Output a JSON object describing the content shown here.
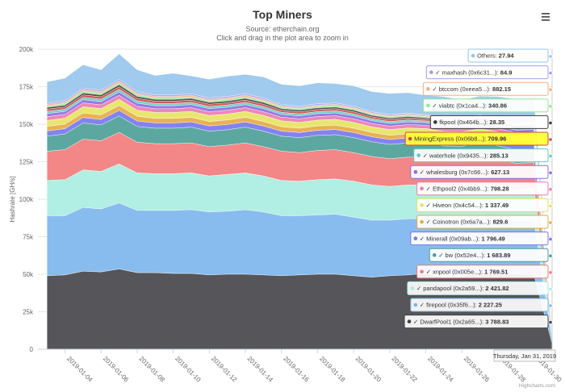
{
  "chart_data": {
    "type": "area",
    "stacked": true,
    "title": "Top Miners",
    "subtitle_line1": "Source: etherchain.org",
    "subtitle_line2": "Click and drag in the plot area to zoom in",
    "ylabel": "Hashrate [GH/s]",
    "ylim": [
      0,
      200000
    ],
    "yticks": [
      0,
      25000,
      50000,
      75000,
      100000,
      125000,
      150000,
      175000,
      200000
    ],
    "ytick_labels": [
      "0",
      "25k",
      "50k",
      "75k",
      "100k",
      "125k",
      "150k",
      "175k",
      "200k"
    ],
    "xticks": [
      "2019-01-04",
      "2019-01-06",
      "2019-01-08",
      "2019-01-10",
      "2019-01-12",
      "2019-01-14",
      "2019-01-16",
      "2019-01-18",
      "2019-01-20",
      "2019-01-22",
      "2019-01-24",
      "2019-01-26",
      "2019-01-28",
      "2019-01-30"
    ],
    "x": [
      "2019-01-03",
      "2019-01-04",
      "2019-01-05",
      "2019-01-06",
      "2019-01-07",
      "2019-01-08",
      "2019-01-09",
      "2019-01-10",
      "2019-01-11",
      "2019-01-12",
      "2019-01-13",
      "2019-01-14",
      "2019-01-15",
      "2019-01-16",
      "2019-01-17",
      "2019-01-18",
      "2019-01-19",
      "2019-01-20",
      "2019-01-21",
      "2019-01-22",
      "2019-01-23",
      "2019-01-24",
      "2019-01-25",
      "2019-01-26",
      "2019-01-27",
      "2019-01-28",
      "2019-01-29",
      "2019-01-30",
      "2019-01-31"
    ],
    "grid": true,
    "series": [
      {
        "name": "DwarfPool1 (0x2a65...)",
        "color": "#434348",
        "values": [
          49000,
          49500,
          52000,
          51500,
          53500,
          51000,
          51000,
          50500,
          50500,
          49500,
          50000,
          50000,
          49500,
          49000,
          49500,
          50000,
          50000,
          49000,
          48000,
          49000,
          49500,
          50500,
          48000,
          48500,
          51500,
          50500,
          50000,
          49500,
          3789
        ]
      },
      {
        "name": "firepool (0x35f6...)",
        "color": "#7cb5ec",
        "values": [
          40000,
          39500,
          42500,
          42000,
          44000,
          41500,
          41500,
          42000,
          42500,
          42000,
          42000,
          43000,
          42000,
          40000,
          39500,
          39500,
          40000,
          39000,
          38000,
          37000,
          37500,
          36500,
          37000,
          37500,
          36500,
          36500,
          35500,
          36000,
          2227
        ]
      },
      {
        "name": "pandapool (0x2a59...)",
        "color": "#a8ece0",
        "values": [
          23500,
          24000,
          25000,
          25000,
          26000,
          25000,
          24500,
          24500,
          24500,
          24000,
          24500,
          24500,
          24000,
          23500,
          23000,
          23500,
          23500,
          24000,
          23500,
          22500,
          22500,
          22500,
          22500,
          22000,
          22000,
          21500,
          21000,
          21500,
          2422
        ]
      },
      {
        "name": "xnpool (0x005e...)",
        "color": "#f27979",
        "values": [
          19500,
          20000,
          20500,
          20500,
          21000,
          20500,
          20000,
          20000,
          20000,
          19500,
          19500,
          20000,
          19500,
          19500,
          19000,
          19500,
          19500,
          19000,
          19000,
          18500,
          18500,
          18500,
          18500,
          18000,
          18000,
          18000,
          17500,
          17500,
          1770
        ]
      },
      {
        "name": "bw (0x52e4...)",
        "color": "#4a9e96",
        "values": [
          10000,
          10500,
          10800,
          10500,
          11000,
          10500,
          10300,
          10300,
          10500,
          10300,
          10300,
          10500,
          10300,
          10000,
          10000,
          10000,
          10000,
          10000,
          9800,
          9500,
          9500,
          9500,
          9500,
          9300,
          9300,
          9100,
          9000,
          9000,
          1684
        ]
      },
      {
        "name": "Minerall (0x09ab...)",
        "color": "#7575ec",
        "values": [
          3500,
          3500,
          3600,
          3600,
          3700,
          3600,
          3500,
          3500,
          3500,
          3500,
          3500,
          3500,
          3500,
          3400,
          3400,
          3400,
          3400,
          3400,
          3300,
          3300,
          3300,
          3200,
          3200,
          3200,
          3200,
          3100,
          3100,
          3100,
          1796
        ]
      },
      {
        "name": "Coinotron (0x6a7a...)",
        "color": "#e8a840",
        "values": [
          3000,
          3000,
          3100,
          3100,
          3200,
          3100,
          3000,
          3000,
          3000,
          3000,
          3000,
          3000,
          3000,
          2900,
          2900,
          2900,
          2900,
          2900,
          2800,
          2800,
          2800,
          2700,
          2700,
          2700,
          2700,
          2600,
          2600,
          2600,
          830
        ]
      },
      {
        "name": "Hiveon (0x4c54...)",
        "color": "#e4e460",
        "values": [
          4000,
          4000,
          4100,
          4100,
          4200,
          4100,
          4000,
          4000,
          4000,
          4000,
          4000,
          4000,
          4000,
          3900,
          3900,
          3900,
          3900,
          3900,
          3800,
          3800,
          3800,
          3700,
          3700,
          3700,
          3700,
          3600,
          3600,
          3600,
          1337
        ]
      },
      {
        "name": "Ethpool2 (0x4bb9...)",
        "color": "#ec7ab0",
        "values": [
          2500,
          2500,
          2600,
          2600,
          2700,
          2600,
          2500,
          2500,
          2500,
          2500,
          2500,
          2500,
          2500,
          2400,
          2400,
          2400,
          2400,
          2400,
          2300,
          2300,
          2300,
          2200,
          2200,
          2200,
          2200,
          2100,
          2100,
          2100,
          798
        ]
      },
      {
        "name": "whalesburg (0x7c66...)",
        "color": "#8b6ce0",
        "values": [
          2000,
          2000,
          2100,
          2100,
          2200,
          2100,
          2000,
          2000,
          2000,
          2000,
          2000,
          2000,
          2000,
          1900,
          1900,
          1900,
          1900,
          1900,
          1800,
          1800,
          1800,
          1700,
          1700,
          1700,
          1700,
          1600,
          1600,
          1600,
          627
        ]
      },
      {
        "name": "waterhole (0x9435...)",
        "color": "#68c8c0",
        "values": [
          1500,
          1500,
          1600,
          1600,
          1700,
          1600,
          1500,
          1500,
          1500,
          1500,
          1500,
          1500,
          1500,
          1400,
          1400,
          1400,
          1400,
          1400,
          1300,
          1300,
          1300,
          1200,
          1200,
          1200,
          1200,
          1100,
          1100,
          1100,
          285
        ]
      },
      {
        "name": "MiningExpress (0x06b8...)",
        "color": "#c84848",
        "values": [
          1500,
          1500,
          1600,
          1600,
          1700,
          1600,
          1500,
          1500,
          1500,
          1500,
          1500,
          1500,
          1500,
          1400,
          1400,
          1400,
          1400,
          1400,
          1300,
          1300,
          1300,
          1200,
          1200,
          1200,
          1200,
          1100,
          1100,
          1100,
          710
        ]
      },
      {
        "name": "fkpool (0x464b...)",
        "color": "#3a3a3a",
        "values": [
          1200,
          1200,
          1300,
          1300,
          1400,
          1300,
          1200,
          1200,
          1200,
          1200,
          1200,
          1200,
          1200,
          1100,
          1100,
          1100,
          1100,
          1100,
          1000,
          1000,
          1000,
          900,
          900,
          900,
          900,
          800,
          800,
          800,
          28
        ]
      },
      {
        "name": "viabtc (0x1ca4...)",
        "color": "#90e890",
        "values": [
          1000,
          1000,
          1100,
          1100,
          1200,
          1100,
          1000,
          1000,
          1000,
          1000,
          1000,
          1000,
          1000,
          900,
          900,
          900,
          900,
          900,
          800,
          800,
          800,
          700,
          700,
          700,
          700,
          600,
          600,
          600,
          341
        ]
      },
      {
        "name": "btccom (0xeea5...)",
        "color": "#f0b080",
        "values": [
          1000,
          1000,
          1100,
          1100,
          1200,
          1100,
          1000,
          1000,
          1000,
          1000,
          1000,
          1000,
          1000,
          900,
          900,
          900,
          900,
          900,
          800,
          800,
          800,
          700,
          700,
          700,
          700,
          600,
          600,
          600,
          882
        ]
      },
      {
        "name": "maxhash (0x6c31...)",
        "color": "#a0a0f0",
        "values": [
          1000,
          1000,
          1100,
          1100,
          1200,
          1100,
          1000,
          1000,
          1000,
          1000,
          1000,
          1000,
          1000,
          900,
          900,
          900,
          900,
          900,
          800,
          800,
          800,
          700,
          700,
          700,
          700,
          600,
          600,
          600,
          85
        ]
      },
      {
        "name": "Others",
        "color": "#96c4ec",
        "values": [
          14000,
          15000,
          15500,
          13500,
          17000,
          14500,
          13000,
          14500,
          12000,
          12500,
          13500,
          13000,
          14000,
          13500,
          13500,
          14000,
          13000,
          13500,
          13500,
          14000,
          13500,
          13000,
          14000,
          12000,
          12500,
          15000,
          16000,
          15500,
          28
        ]
      }
    ]
  },
  "tooltip": {
    "header": "Thursday, Jan 31, 2019",
    "rows": [
      {
        "label": "Others",
        "check": false,
        "value": "27.94"
      },
      {
        "label": "maxhash (0x6c31...)",
        "check": true,
        "value": "84.9"
      },
      {
        "label": "btccom (0xeea5...)",
        "check": true,
        "value": "882.15"
      },
      {
        "label": "viabtc (0x1ca4...)",
        "check": true,
        "value": "340.86"
      },
      {
        "label": "fkpool (0x464b...)",
        "check": false,
        "value": "28.35"
      },
      {
        "label": "MiningExpress (0x06b8...)",
        "check": false,
        "value": "709.96"
      },
      {
        "label": "waterhole (0x9435...)",
        "check": true,
        "value": "285.13"
      },
      {
        "label": "whalesburg (0x7c66...)",
        "check": true,
        "value": "627.13"
      },
      {
        "label": "Ethpool2 (0x4bb9...)",
        "check": true,
        "value": "798.28"
      },
      {
        "label": "Hiveon (0x4c54...)",
        "check": true,
        "value": "1 337.49"
      },
      {
        "label": "Coinotron (0x6a7a...)",
        "check": true,
        "value": "829.6"
      },
      {
        "label": "Minerall (0x09ab...)",
        "check": true,
        "value": "1 796.49"
      },
      {
        "label": "bw (0x52e4...)",
        "check": true,
        "value": "1 683.89"
      },
      {
        "label": "xnpool (0x005e...)",
        "check": true,
        "value": "1 769.51"
      },
      {
        "label": "pandapool (0x2a59...)",
        "check": true,
        "value": "2 421.82"
      },
      {
        "label": "firepool (0x35f6...)",
        "check": true,
        "value": "2 227.25"
      },
      {
        "label": "DwarfPool1 (0x2a65...)",
        "check": true,
        "value": "3 788.83"
      }
    ]
  },
  "menu_icon": "hamburger-menu-icon",
  "credits": "Highcharts.com"
}
